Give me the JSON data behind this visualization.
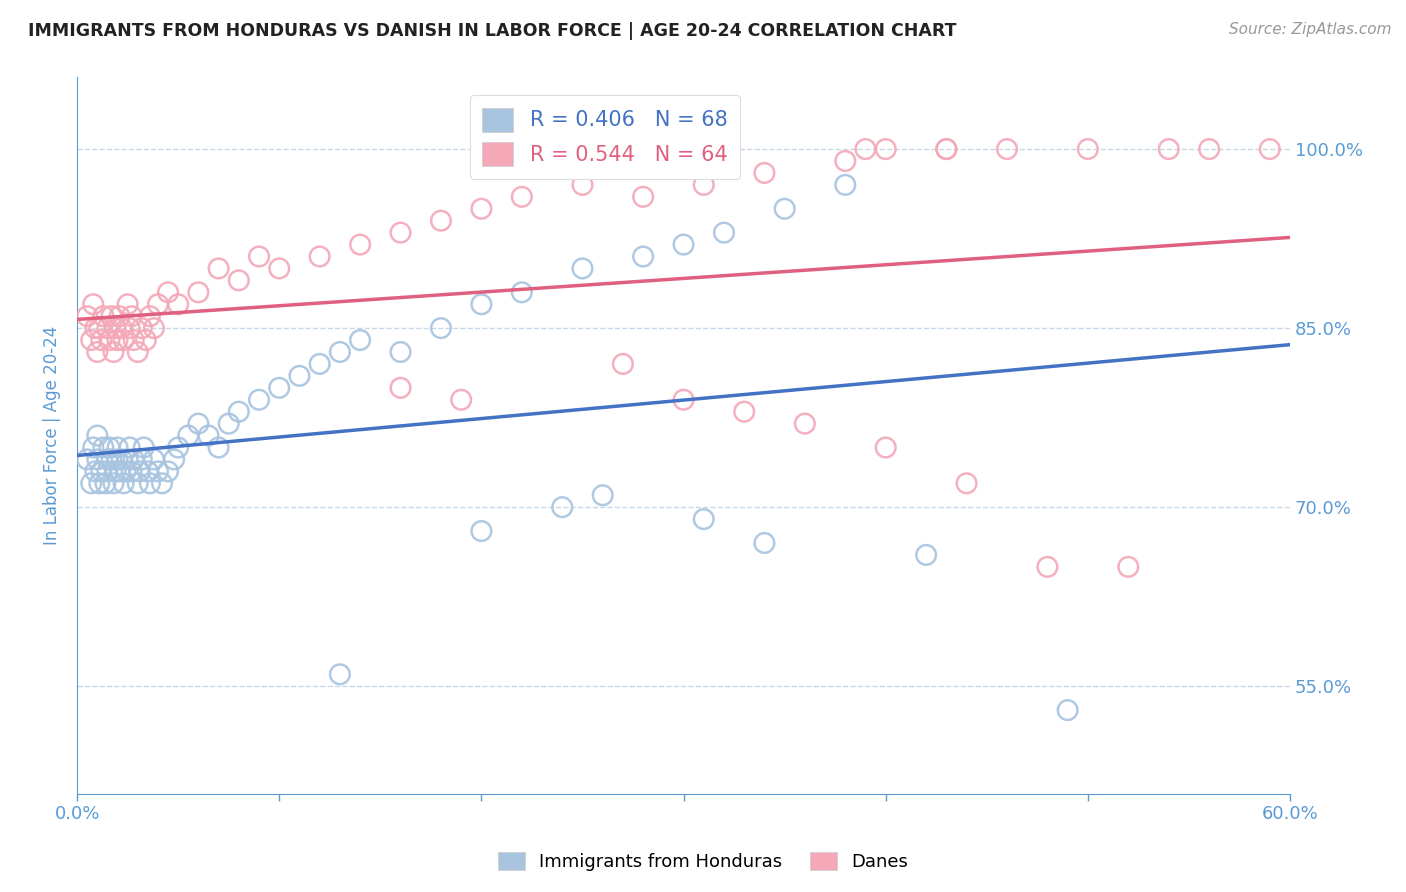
{
  "title": "IMMIGRANTS FROM HONDURAS VS DANISH IN LABOR FORCE | AGE 20-24 CORRELATION CHART",
  "source": "Source: ZipAtlas.com",
  "ylabel": "In Labor Force | Age 20-24",
  "xlim": [
    0.0,
    0.6
  ],
  "ylim": [
    0.46,
    1.06
  ],
  "xticks": [
    0.0,
    0.1,
    0.2,
    0.3,
    0.4,
    0.5,
    0.6
  ],
  "xtick_labels": [
    "0.0%",
    "",
    "",
    "",
    "",
    "",
    "60.0%"
  ],
  "ytick_positions": [
    0.55,
    0.7,
    0.85,
    1.0
  ],
  "ytick_labels": [
    "55.0%",
    "70.0%",
    "85.0%",
    "100.0%"
  ],
  "legend_blue_label": "Immigrants from Honduras",
  "legend_pink_label": "Danes",
  "R_blue": 0.406,
  "N_blue": 68,
  "R_pink": 0.544,
  "N_pink": 64,
  "blue_color": "#a8c4e0",
  "pink_color": "#f4a8b8",
  "blue_line_color": "#4472c4",
  "pink_line_color": "#e06080",
  "axis_color": "#5b9bd5",
  "grid_color": "#c8d8e8",
  "title_color": "#222222",
  "background_color": "#ffffff",
  "blue_scatter_x": [
    0.005,
    0.007,
    0.008,
    0.009,
    0.01,
    0.01,
    0.011,
    0.012,
    0.013,
    0.014,
    0.015,
    0.015,
    0.016,
    0.017,
    0.018,
    0.019,
    0.02,
    0.02,
    0.021,
    0.022,
    0.023,
    0.024,
    0.025,
    0.026,
    0.027,
    0.028,
    0.03,
    0.031,
    0.032,
    0.033,
    0.035,
    0.036,
    0.038,
    0.04,
    0.042,
    0.045,
    0.048,
    0.05,
    0.055,
    0.06,
    0.065,
    0.07,
    0.075,
    0.08,
    0.09,
    0.1,
    0.11,
    0.12,
    0.13,
    0.14,
    0.16,
    0.18,
    0.2,
    0.22,
    0.25,
    0.28,
    0.3,
    0.32,
    0.35,
    0.38,
    0.13,
    0.2,
    0.24,
    0.26,
    0.31,
    0.34,
    0.42,
    0.49
  ],
  "blue_scatter_y": [
    0.74,
    0.72,
    0.75,
    0.73,
    0.74,
    0.76,
    0.72,
    0.73,
    0.75,
    0.72,
    0.74,
    0.73,
    0.75,
    0.74,
    0.72,
    0.73,
    0.74,
    0.75,
    0.73,
    0.74,
    0.72,
    0.73,
    0.74,
    0.75,
    0.73,
    0.74,
    0.72,
    0.73,
    0.74,
    0.75,
    0.73,
    0.72,
    0.74,
    0.73,
    0.72,
    0.73,
    0.74,
    0.75,
    0.76,
    0.77,
    0.76,
    0.75,
    0.77,
    0.78,
    0.79,
    0.8,
    0.81,
    0.82,
    0.83,
    0.84,
    0.83,
    0.85,
    0.87,
    0.88,
    0.9,
    0.91,
    0.92,
    0.93,
    0.95,
    0.97,
    0.56,
    0.68,
    0.7,
    0.71,
    0.69,
    0.67,
    0.66,
    0.53
  ],
  "pink_scatter_x": [
    0.005,
    0.007,
    0.008,
    0.009,
    0.01,
    0.011,
    0.012,
    0.013,
    0.015,
    0.016,
    0.017,
    0.018,
    0.019,
    0.02,
    0.021,
    0.022,
    0.023,
    0.025,
    0.026,
    0.027,
    0.028,
    0.03,
    0.032,
    0.034,
    0.036,
    0.038,
    0.04,
    0.045,
    0.05,
    0.06,
    0.07,
    0.08,
    0.09,
    0.1,
    0.12,
    0.14,
    0.16,
    0.18,
    0.2,
    0.22,
    0.25,
    0.28,
    0.31,
    0.34,
    0.38,
    0.4,
    0.43,
    0.46,
    0.5,
    0.54,
    0.16,
    0.19,
    0.27,
    0.3,
    0.33,
    0.36,
    0.4,
    0.44,
    0.48,
    0.52,
    0.39,
    0.43,
    0.56,
    0.59
  ],
  "pink_scatter_y": [
    0.86,
    0.84,
    0.87,
    0.85,
    0.83,
    0.85,
    0.84,
    0.86,
    0.85,
    0.84,
    0.86,
    0.83,
    0.85,
    0.84,
    0.86,
    0.85,
    0.84,
    0.87,
    0.85,
    0.86,
    0.84,
    0.83,
    0.85,
    0.84,
    0.86,
    0.85,
    0.87,
    0.88,
    0.87,
    0.88,
    0.9,
    0.89,
    0.91,
    0.9,
    0.91,
    0.92,
    0.93,
    0.94,
    0.95,
    0.96,
    0.97,
    0.96,
    0.97,
    0.98,
    0.99,
    1.0,
    1.0,
    1.0,
    1.0,
    1.0,
    0.8,
    0.79,
    0.82,
    0.79,
    0.78,
    0.77,
    0.75,
    0.72,
    0.65,
    0.65,
    1.0,
    1.0,
    1.0,
    1.0
  ]
}
